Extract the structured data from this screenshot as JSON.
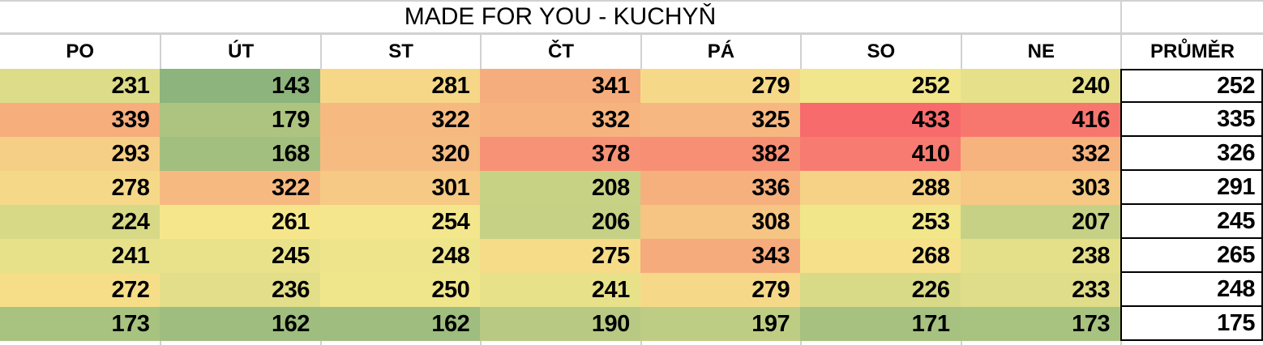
{
  "title": "MADE FOR YOU - KUCHYŇ",
  "columns": [
    "PO",
    "ÚT",
    "ST",
    "ČT",
    "PÁ",
    "SO",
    "NE"
  ],
  "average_label": "PRŮMĚR",
  "rows": [
    {
      "values": [
        231,
        143,
        281,
        341,
        279,
        252,
        240
      ],
      "average": 252
    },
    {
      "values": [
        339,
        179,
        322,
        332,
        325,
        433,
        416
      ],
      "average": 335
    },
    {
      "values": [
        293,
        168,
        320,
        378,
        382,
        410,
        332
      ],
      "average": 326
    },
    {
      "values": [
        278,
        322,
        301,
        208,
        336,
        288,
        303
      ],
      "average": 291
    },
    {
      "values": [
        224,
        261,
        254,
        206,
        308,
        253,
        207
      ],
      "average": 245
    },
    {
      "values": [
        241,
        245,
        248,
        275,
        343,
        268,
        238
      ],
      "average": 265
    },
    {
      "values": [
        272,
        236,
        250,
        241,
        279,
        226,
        233
      ],
      "average": 248
    },
    {
      "values": [
        173,
        162,
        162,
        190,
        197,
        171,
        173
      ],
      "average": 175
    }
  ],
  "color_scale": {
    "type": "3-color",
    "min": {
      "value": 143,
      "color": "#8CB47C"
    },
    "mid": {
      "value": 257.5,
      "color": "#F6E88C"
    },
    "max": {
      "value": 433,
      "color": "#F76B6C"
    }
  },
  "colors": {
    "gridline": "#D1D1D1",
    "average_border": "#000000",
    "text": "#000000",
    "background": "#FFFFFF"
  }
}
